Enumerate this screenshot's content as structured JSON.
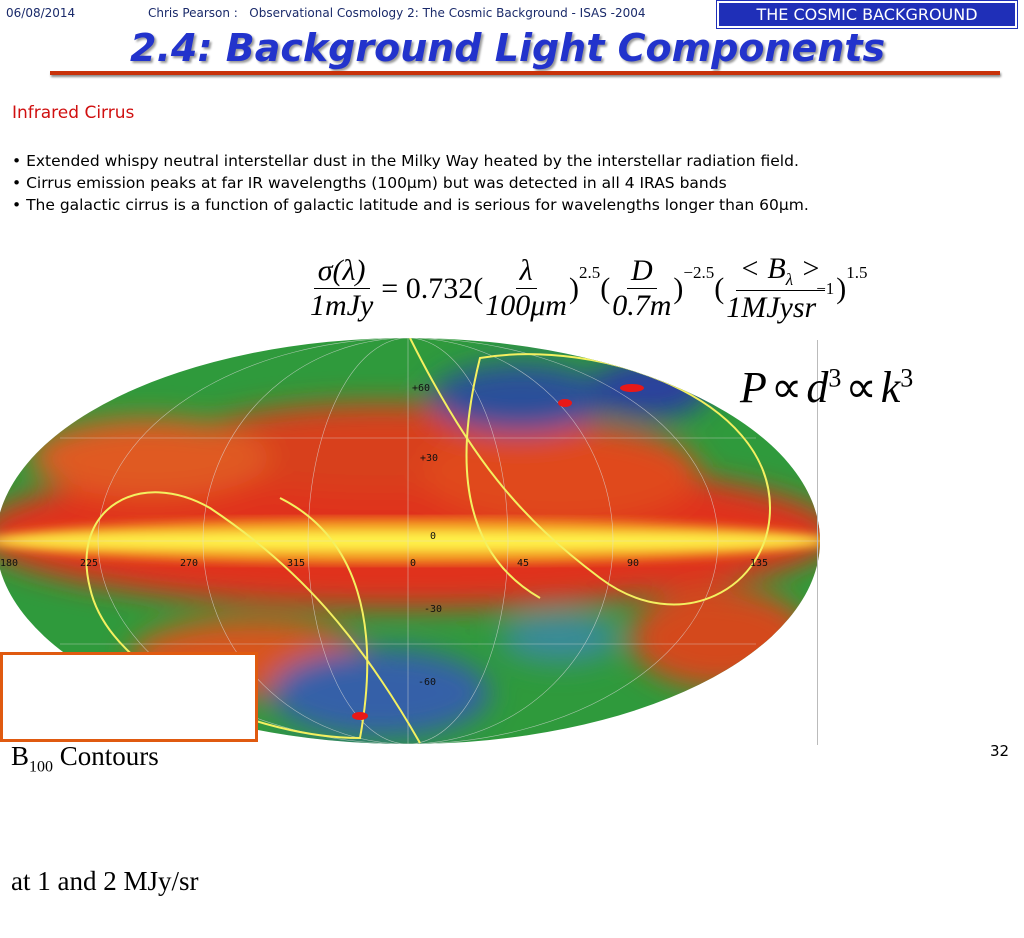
{
  "header": {
    "date": "06/08/2014",
    "source": "Chris Pearson :   Observational Cosmology 2: The Cosmic Background - ISAS -2004",
    "badge": "THE COSMIC BACKGROUND"
  },
  "title": "2.4: Background Light Components",
  "section": "Infrared Cirrus",
  "bullets": [
    "• Extended whispy neutral interstellar dust in the Milky Way heated by the interstellar radiation field.",
    "• Cirrus emission peaks at far IR wavelengths (100μm) but was detected in all 4 IRAS bands",
    "• The galactic cirrus is a function of galactic latitude and is serious for wavelengths longer than 60μm."
  ],
  "equation": {
    "lhs": {
      "num": "σ(λ)",
      "den": "1mJy"
    },
    "coefficient": "= 0.732",
    "factors": [
      {
        "open": "(",
        "num": "λ",
        "den": "100μm",
        "close": ")",
        "exp": "2.5"
      },
      {
        "open": "(",
        "num": "D",
        "den": "0.7m",
        "close": ")",
        "exp": "−2.5"
      },
      {
        "open": "(",
        "num": "< B",
        "num_sub": "λ",
        "num_end": " >",
        "den": "1MJysr",
        "den_sup": "−1",
        "close": ")",
        "exp": "1.5"
      }
    ]
  },
  "map": {
    "latitude_labels": [
      "+60",
      "+30",
      "0",
      "-30",
      "-60"
    ],
    "longitude_labels": [
      "180",
      "225",
      "270",
      "315",
      "0",
      "45",
      "90",
      "135"
    ]
  },
  "relation": {
    "terms": [
      {
        "base": "P"
      },
      {
        "op": "∝",
        "base": "d",
        "exp": "3"
      },
      {
        "op": "∝",
        "base": "k",
        "exp": "3"
      }
    ]
  },
  "caption": {
    "symbol": "B",
    "subscript": "100",
    "line1_rest": " Contours",
    "line2": "at 1 and 2 MJy/sr"
  },
  "page_number": "32"
}
